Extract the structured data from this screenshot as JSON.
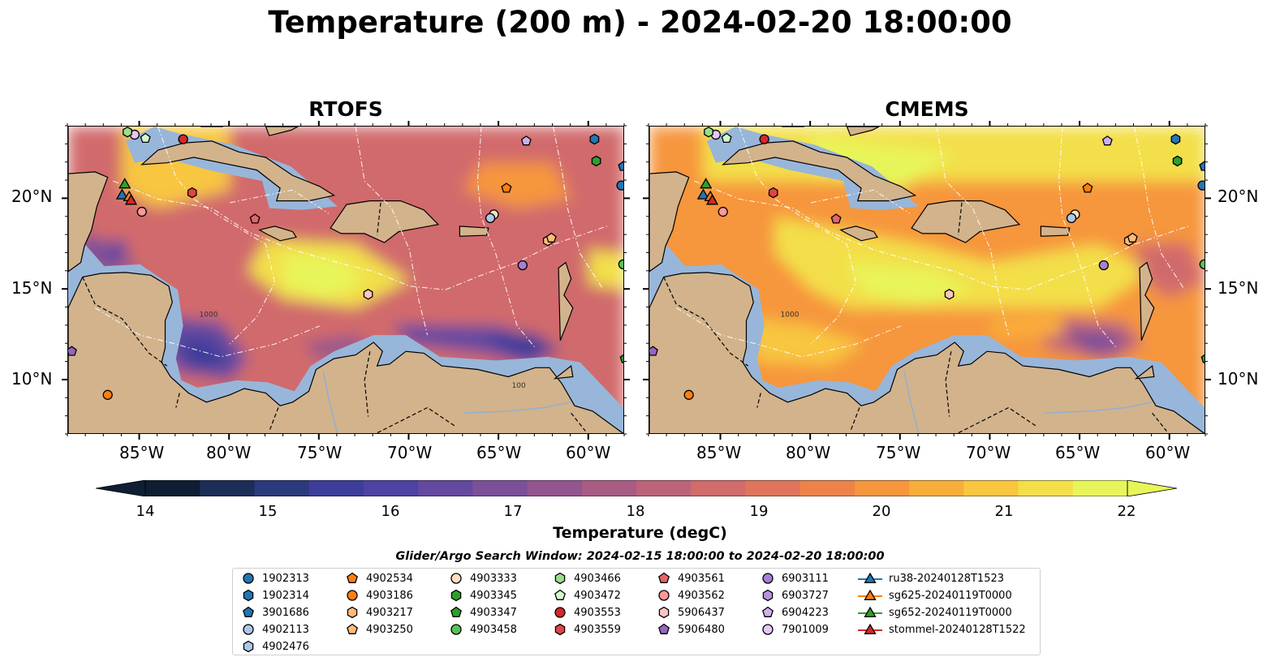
{
  "title": "Temperature (200 m) - 2024-02-20 18:00:00",
  "panels": [
    {
      "name": "RTOFS"
    },
    {
      "name": "CMEMS"
    }
  ],
  "map": {
    "lon_range": [
      -89,
      -58
    ],
    "lat_range": [
      7,
      24
    ],
    "lon_ticks": [
      "85°W",
      "80°W",
      "75°W",
      "70°W",
      "65°W",
      "60°W"
    ],
    "lat_ticks": [
      "20°N",
      "15°N",
      "10°N"
    ],
    "contour_labels": [
      "1000",
      "100"
    ]
  },
  "colorbar": {
    "label": "Temperature (degC)",
    "ticks": [
      "14",
      "15",
      "16",
      "17",
      "18",
      "19",
      "20",
      "21",
      "22"
    ],
    "range": [
      14,
      22
    ],
    "extend": "both",
    "colors": [
      "#0f1e33",
      "#1c2d57",
      "#2b3a7d",
      "#3d3d9a",
      "#4e42a3",
      "#6548a0",
      "#7c4f99",
      "#92558f",
      "#a85c84",
      "#bd6379",
      "#d16b6c",
      "#e0755c",
      "#ee834a",
      "#f6963d",
      "#f9ad3a",
      "#f8c63f",
      "#f3df48",
      "#e8f55a"
    ],
    "scale": "linear"
  },
  "legend": {
    "title": "Glider/Argo Search Window: 2024-02-15 18:00:00 to 2024-02-20 18:00:00",
    "items": [
      {
        "label": "1902313",
        "marker": "circle",
        "color": "#1f77b4"
      },
      {
        "label": "1902314",
        "marker": "hexagon",
        "color": "#1f77b4"
      },
      {
        "label": "3901686",
        "marker": "pentagon",
        "color": "#1f77b4"
      },
      {
        "label": "4902113",
        "marker": "circle",
        "color": "#aec7e8"
      },
      {
        "label": "4902476",
        "marker": "hexagon",
        "color": "#aec7e8"
      },
      {
        "label": "4902534",
        "marker": "pentagon",
        "color": "#ff7f0e"
      },
      {
        "label": "4903186",
        "marker": "circle",
        "color": "#ff7f0e"
      },
      {
        "label": "4903217",
        "marker": "hexagon",
        "color": "#ffbb78"
      },
      {
        "label": "4903250",
        "marker": "pentagon",
        "color": "#ffbb78"
      },
      {
        "label": "4903333",
        "marker": "circle",
        "color": "#ffe0c0"
      },
      {
        "label": "4903345",
        "marker": "hexagon",
        "color": "#2ca02c"
      },
      {
        "label": "4903347",
        "marker": "pentagon",
        "color": "#2ca02c"
      },
      {
        "label": "4903458",
        "marker": "circle",
        "color": "#55c455"
      },
      {
        "label": "4903466",
        "marker": "hexagon",
        "color": "#98df8a"
      },
      {
        "label": "4903472",
        "marker": "pentagon",
        "color": "#d4f7cc"
      },
      {
        "label": "4903553",
        "marker": "circle",
        "color": "#d62728"
      },
      {
        "label": "4903559",
        "marker": "hexagon",
        "color": "#e04444"
      },
      {
        "label": "4903561",
        "marker": "pentagon",
        "color": "#e8636a"
      },
      {
        "label": "4903562",
        "marker": "circle",
        "color": "#ff9896"
      },
      {
        "label": "5906437",
        "marker": "hexagon",
        "color": "#ffc4c2"
      },
      {
        "label": "5906480",
        "marker": "pentagon",
        "color": "#9467bd"
      },
      {
        "label": "6903111",
        "marker": "circle",
        "color": "#a77fd4"
      },
      {
        "label": "6903727",
        "marker": "hexagon",
        "color": "#b893e0"
      },
      {
        "label": "6904223",
        "marker": "pentagon",
        "color": "#cdb0ee"
      },
      {
        "label": "7901009",
        "marker": "circle",
        "color": "#e4c8f8"
      },
      {
        "label": "ru38-20240128T1523",
        "marker": "triangle-line",
        "color": "#1f77b4"
      },
      {
        "label": "sg625-20240119T0000",
        "marker": "triangle-line",
        "color": "#ff7f0e"
      },
      {
        "label": "sg652-20240119T0000",
        "marker": "triangle-line",
        "color": "#2ca02c"
      },
      {
        "label": "stommel-20240128T1522",
        "marker": "triangle-line",
        "color": "#d62728"
      }
    ]
  },
  "floats": [
    {
      "id": "7901009",
      "lon": -85.3,
      "lat": 23.55
    },
    {
      "id": "4903472",
      "lon": -84.7,
      "lat": 23.35
    },
    {
      "id": "4903553",
      "lon": -82.6,
      "lat": 23.3
    },
    {
      "id": "4903466",
      "lon": -85.7,
      "lat": 23.7
    },
    {
      "id": "4903562",
      "lon": -84.9,
      "lat": 19.3
    },
    {
      "id": "4903559",
      "lon": -82.1,
      "lat": 20.35
    },
    {
      "id": "4903561",
      "lon": -78.6,
      "lat": 18.9
    },
    {
      "id": "4902534",
      "lon": -64.6,
      "lat": 20.6
    },
    {
      "id": "4903333",
      "lon": -65.3,
      "lat": 19.15
    },
    {
      "id": "4902113",
      "lon": -65.5,
      "lat": 18.95
    },
    {
      "id": "4903217",
      "lon": -62.3,
      "lat": 17.7
    },
    {
      "id": "4903250",
      "lon": -62.1,
      "lat": 17.85
    },
    {
      "id": "6903111",
      "lon": -63.7,
      "lat": 16.35
    },
    {
      "id": "5906437",
      "lon": -72.3,
      "lat": 14.75
    },
    {
      "id": "6904223",
      "lon": -63.5,
      "lat": 23.2
    },
    {
      "id": "1902314",
      "lon": -59.7,
      "lat": 23.3
    },
    {
      "id": "4903345",
      "lon": -59.6,
      "lat": 22.1
    },
    {
      "id": "3901686",
      "lon": -58.1,
      "lat": 21.8
    },
    {
      "id": "1902313",
      "lon": -58.2,
      "lat": 20.75
    },
    {
      "id": "4903458",
      "lon": -58.1,
      "lat": 16.4
    },
    {
      "id": "4903347",
      "lon": -58.0,
      "lat": 11.2
    },
    {
      "id": "5906480",
      "lon": -88.8,
      "lat": 11.6
    },
    {
      "id": "4903186",
      "lon": -86.8,
      "lat": 9.2
    }
  ],
  "gliders": [
    {
      "id": "sg652-20240119T0000",
      "lon": -85.85,
      "lat": 20.85
    },
    {
      "id": "ru38-20240128T1523",
      "lon": -86.0,
      "lat": 20.25
    },
    {
      "id": "sg625-20240119T0000",
      "lon": -85.6,
      "lat": 20.15
    },
    {
      "id": "stommel-20240128T1522",
      "lon": -85.5,
      "lat": 19.95
    }
  ]
}
